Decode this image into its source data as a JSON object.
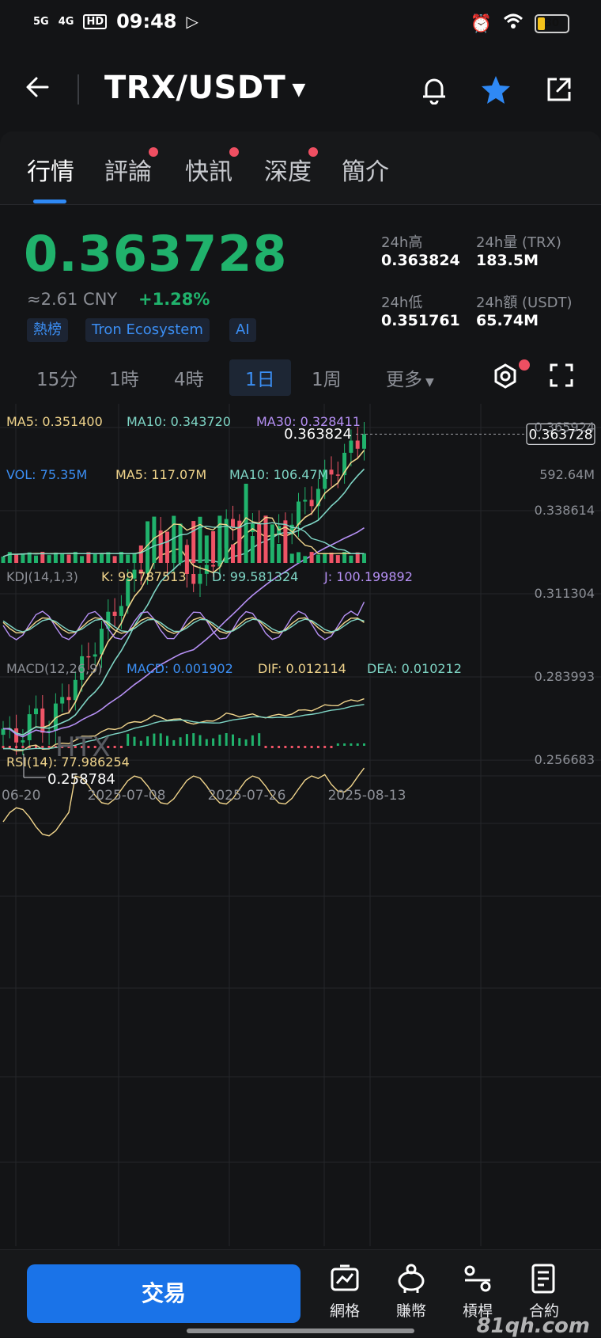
{
  "status": {
    "sig1": "5G",
    "sig2": "4G",
    "hd": "HD",
    "time": "09:48",
    "battery": "30"
  },
  "header": {
    "pair": "TRX/USDT"
  },
  "tabs": [
    {
      "label": "行情",
      "dot": false
    },
    {
      "label": "評論",
      "dot": true
    },
    {
      "label": "快訊",
      "dot": true
    },
    {
      "label": "深度",
      "dot": true
    },
    {
      "label": "簡介",
      "dot": false
    }
  ],
  "price": {
    "last": "0.363728",
    "cny": "≈2.61 CNY",
    "change": "+1.28%",
    "tags": [
      "熱榜",
      "Tron Ecosystem",
      "AI"
    ]
  },
  "stats": {
    "high_label": "24h高",
    "high": "0.363824",
    "vol_label": "24h量 (TRX)",
    "vol": "183.5M",
    "low_label": "24h低",
    "low": "0.351761",
    "amt_label": "24h額 (USDT)",
    "amt": "65.74M"
  },
  "timeframes": [
    "15分",
    "1時",
    "4時",
    "1日",
    "1周",
    "更多"
  ],
  "timeframe_selected": "1日",
  "chart_data": {
    "type": "candlestick",
    "ma_labels": {
      "ma5": "MA5: 0.351400",
      "ma10": "MA10: 0.343720",
      "ma30": "MA30: 0.328411"
    },
    "y_ticks": [
      "0.365924",
      "0.338614",
      "0.311304",
      "0.283993",
      "0.256683"
    ],
    "ylim": [
      0.2541,
      0.3685
    ],
    "last_label": "0.363728",
    "high_label": "0.363824",
    "low_label": "0.258784",
    "x_ticks": [
      "06-20",
      "2025-07-08",
      "2025-07-26",
      "2025-08-13"
    ],
    "colors": {
      "up": "#20b26c",
      "down": "#ef5466",
      "ma5": "#f1d58c",
      "ma10": "#7fd6c6",
      "ma30": "#b690f5"
    },
    "volume": {
      "vol": "VOL: 75.35M",
      "ma5": "MA5: 117.07M",
      "ma10": "MA10: 106.47M",
      "max": "592.64M"
    },
    "kdj": {
      "name": "KDJ(14,1,3)",
      "k": "K: 99.787513",
      "d": "D: 99.581324",
      "j": "J: 100.199892"
    },
    "macd": {
      "name": "MACD(12,26,9)",
      "macd": "MACD: 0.001902",
      "dif": "DIF: 0.012114",
      "dea": "DEA: 0.010212"
    },
    "rsi": {
      "name": "RSI(14): 77.986254"
    },
    "watermark": "HTX"
  },
  "bottom": {
    "trade": "交易",
    "nav": [
      "網格",
      "賺幣",
      "槓桿",
      "合約"
    ]
  },
  "footer_watermark": "81qh.com"
}
